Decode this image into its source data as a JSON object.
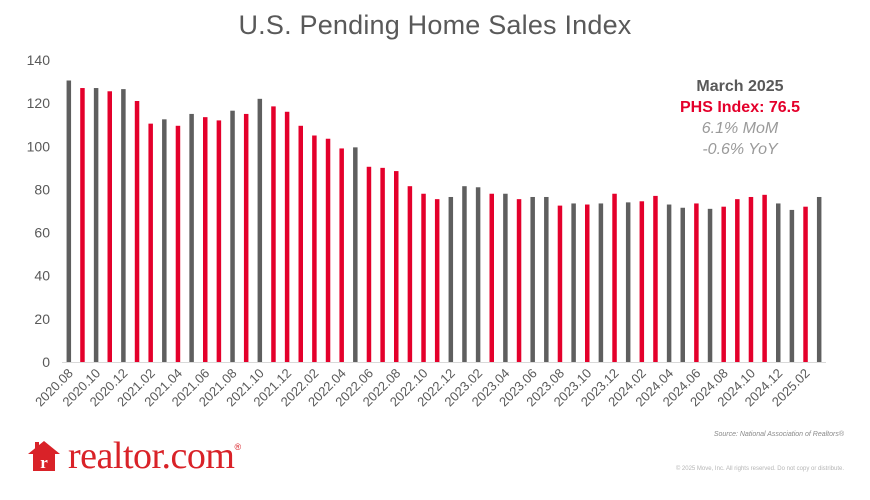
{
  "chart_data": {
    "type": "bar",
    "title": "U.S. Pending Home Sales Index",
    "xlabel": "",
    "ylabel": "",
    "ylim": [
      0,
      140
    ],
    "yticks": [
      0,
      20,
      40,
      60,
      80,
      100,
      120,
      140
    ],
    "grid": false,
    "categories": [
      "2020.08",
      "2020.09",
      "2020.10",
      "2020.11",
      "2020.12",
      "2021.01",
      "2021.02",
      "2021.03",
      "2021.04",
      "2021.05",
      "2021.06",
      "2021.07",
      "2021.08",
      "2021.09",
      "2021.10",
      "2021.11",
      "2021.12",
      "2022.01",
      "2022.02",
      "2022.03",
      "2022.04",
      "2022.05",
      "2022.06",
      "2022.07",
      "2022.08",
      "2022.09",
      "2022.10",
      "2022.11",
      "2022.12",
      "2023.01",
      "2023.02",
      "2023.03",
      "2023.04",
      "2023.05",
      "2023.06",
      "2023.07",
      "2023.08",
      "2023.09",
      "2023.10",
      "2023.11",
      "2023.12",
      "2024.01",
      "2024.02",
      "2024.03",
      "2024.04",
      "2024.05",
      "2024.06",
      "2024.07",
      "2024.08",
      "2024.09",
      "2024.10",
      "2024.11",
      "2024.12",
      "2025.01",
      "2025.02",
      "2025.03"
    ],
    "tick_labels": [
      "2020.08",
      "2020.10",
      "2020.12",
      "2021.02",
      "2021.04",
      "2021.06",
      "2021.08",
      "2021.10",
      "2021.12",
      "2022.02",
      "2022.04",
      "2022.06",
      "2022.08",
      "2022.10",
      "2022.12",
      "2023.02",
      "2023.04",
      "2023.06",
      "2023.08",
      "2023.10",
      "2023.12",
      "2024.02",
      "2024.04",
      "2024.06",
      "2024.08",
      "2024.10",
      "2024.12",
      "2025.02"
    ],
    "values": [
      130.5,
      127,
      127,
      125.5,
      126.5,
      121,
      110.5,
      112.5,
      109.5,
      115,
      113.5,
      112,
      116.5,
      115,
      122,
      118.5,
      116,
      109.5,
      105,
      103.5,
      99,
      99.5,
      90.5,
      90,
      88.5,
      81.5,
      78,
      75.5,
      76.5,
      81.5,
      81,
      78,
      78,
      75.5,
      76.5,
      76.5,
      72.5,
      73.5,
      73,
      73.5,
      78,
      74,
      74.5,
      77,
      73,
      71.5,
      73.5,
      71,
      72,
      75.5,
      76.5,
      77.5,
      73.5,
      70.5,
      72,
      76.5
    ],
    "bar_colors": [
      "gray",
      "red",
      "gray",
      "red",
      "gray",
      "red",
      "red",
      "gray",
      "red",
      "gray",
      "red",
      "red",
      "gray",
      "red",
      "gray",
      "red",
      "red",
      "red",
      "red",
      "red",
      "red",
      "gray",
      "red",
      "red",
      "red",
      "red",
      "red",
      "red",
      "gray",
      "gray",
      "gray",
      "red",
      "gray",
      "red",
      "gray",
      "gray",
      "red",
      "gray",
      "red",
      "gray",
      "red",
      "gray",
      "red",
      "red",
      "gray",
      "gray",
      "red",
      "gray",
      "red",
      "red",
      "red",
      "red",
      "gray",
      "gray",
      "red",
      "gray"
    ],
    "colors": {
      "gray": "#5f5f5f",
      "red": "#e4002b",
      "axis": "#d9d9d9",
      "tick_text": "#595959"
    }
  },
  "callout": {
    "period": "March 2025",
    "index": "PHS Index: 76.5",
    "mom": "6.1% MoM",
    "yoy": "-0.6% YoY"
  },
  "source": "Source: National Association of Realtors®",
  "copyright": "© 2025 Move, Inc. All rights reserved. Do not copy or distribute.",
  "logo": {
    "text": "realtor.com",
    "suffix": "®",
    "color": "#d92228"
  }
}
